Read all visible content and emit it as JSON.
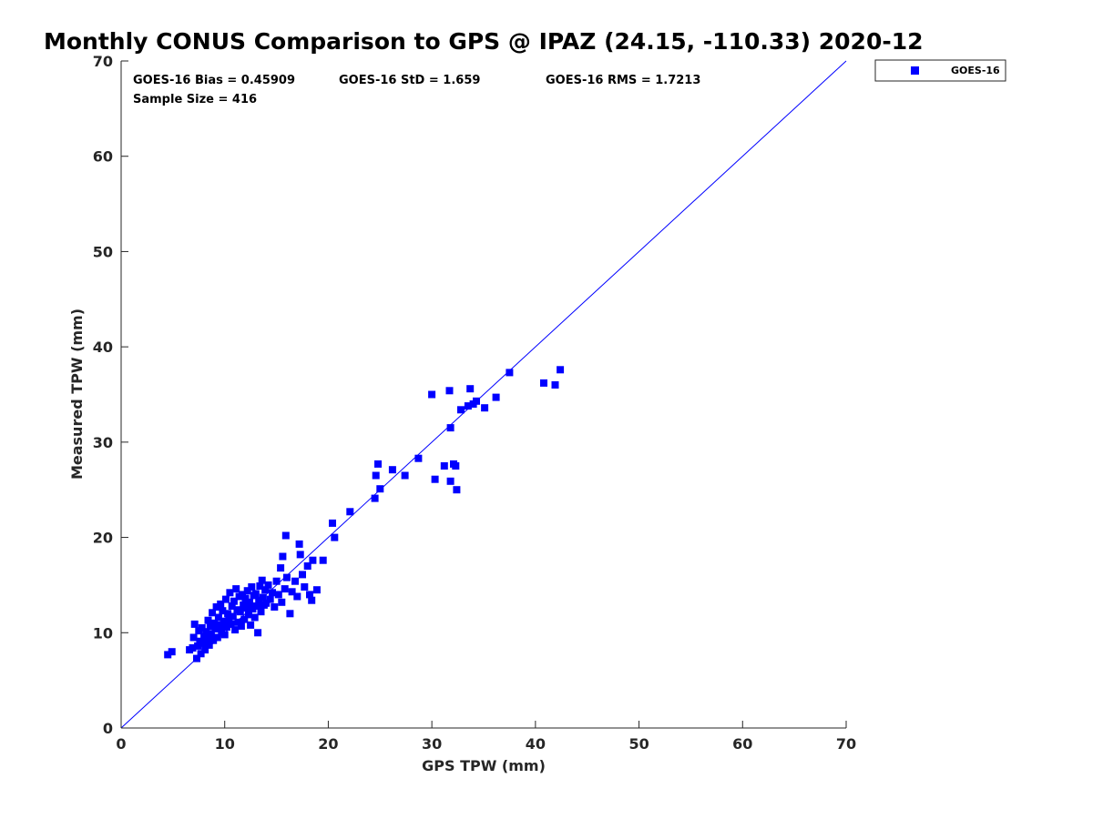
{
  "chart_data": {
    "type": "scatter",
    "title": "Monthly CONUS Comparison to GPS @ IPAZ (24.15, -110.33) 2020-12",
    "xlabel": "GPS TPW (mm)",
    "ylabel": "Measured TPW (mm)",
    "xlim": [
      0,
      70
    ],
    "ylim": [
      0,
      70
    ],
    "xticks": [
      "0",
      "10",
      "20",
      "30",
      "40",
      "50",
      "60",
      "70"
    ],
    "yticks": [
      "0",
      "10",
      "20",
      "30",
      "40",
      "50",
      "60",
      "70"
    ],
    "grid": false,
    "legend_position": "outside-top-right",
    "marker_color": "#0000ff",
    "reference_line": {
      "x": [
        0,
        70
      ],
      "y": [
        0,
        70
      ]
    },
    "stats": {
      "bias": "GOES-16 Bias = 0.45909",
      "std": "GOES-16 StD = 1.659",
      "rms": "GOES-16 RMS = 1.7213",
      "sample_size": "Sample Size = 416"
    },
    "series": [
      {
        "name": "GOES-16",
        "points": [
          [
            4.5,
            7.7
          ],
          [
            4.9,
            8.0
          ],
          [
            6.6,
            8.2
          ],
          [
            6.9,
            8.4
          ],
          [
            7.0,
            9.5
          ],
          [
            7.1,
            10.9
          ],
          [
            7.3,
            7.3
          ],
          [
            7.4,
            8.6
          ],
          [
            7.5,
            10.2
          ],
          [
            7.6,
            9.1
          ],
          [
            7.7,
            7.8
          ],
          [
            7.8,
            10.5
          ],
          [
            7.9,
            8.9
          ],
          [
            8.0,
            9.6
          ],
          [
            8.1,
            8.2
          ],
          [
            8.2,
            10.1
          ],
          [
            8.3,
            9.3
          ],
          [
            8.4,
            11.3
          ],
          [
            8.5,
            8.7
          ],
          [
            8.6,
            10.7
          ],
          [
            8.7,
            9.9
          ],
          [
            8.8,
            12.1
          ],
          [
            8.9,
            9.2
          ],
          [
            9.0,
            11.0
          ],
          [
            9.1,
            10.4
          ],
          [
            9.2,
            12.7
          ],
          [
            9.3,
            9.5
          ],
          [
            9.4,
            11.6
          ],
          [
            9.5,
            10.8
          ],
          [
            9.6,
            13.0
          ],
          [
            9.7,
            10.1
          ],
          [
            9.8,
            12.3
          ],
          [
            9.9,
            11.2
          ],
          [
            10.0,
            9.8
          ],
          [
            10.1,
            13.5
          ],
          [
            10.2,
            10.6
          ],
          [
            10.3,
            12.0
          ],
          [
            10.4,
            11.5
          ],
          [
            10.5,
            14.2
          ],
          [
            10.6,
            10.9
          ],
          [
            10.7,
            12.8
          ],
          [
            10.8,
            11.7
          ],
          [
            10.9,
            13.3
          ],
          [
            11.0,
            10.3
          ],
          [
            11.1,
            14.6
          ],
          [
            11.2,
            12.4
          ],
          [
            11.3,
            11.1
          ],
          [
            11.4,
            13.8
          ],
          [
            11.5,
            12.2
          ],
          [
            11.6,
            10.7
          ],
          [
            11.7,
            14.0
          ],
          [
            11.8,
            12.9
          ],
          [
            11.9,
            11.4
          ],
          [
            12.0,
            13.6
          ],
          [
            12.1,
            12.6
          ],
          [
            12.2,
            14.4
          ],
          [
            12.3,
            11.9
          ],
          [
            12.4,
            13.2
          ],
          [
            12.5,
            10.8
          ],
          [
            12.6,
            14.8
          ],
          [
            12.7,
            12.5
          ],
          [
            12.8,
            13.9
          ],
          [
            12.9,
            11.6
          ],
          [
            13.0,
            14.1
          ],
          [
            13.1,
            12.8
          ],
          [
            13.2,
            10.0
          ],
          [
            13.3,
            13.4
          ],
          [
            13.4,
            14.9
          ],
          [
            13.5,
            12.2
          ],
          [
            13.6,
            15.5
          ],
          [
            13.7,
            13.7
          ],
          [
            13.8,
            12.9
          ],
          [
            13.9,
            14.5
          ],
          [
            14.0,
            13.1
          ],
          [
            14.2,
            15.0
          ],
          [
            14.4,
            13.5
          ],
          [
            14.6,
            14.2
          ],
          [
            14.8,
            12.7
          ],
          [
            15.0,
            15.4
          ],
          [
            15.2,
            14.0
          ],
          [
            15.4,
            16.8
          ],
          [
            15.5,
            13.2
          ],
          [
            15.6,
            18.0
          ],
          [
            15.8,
            14.6
          ],
          [
            15.9,
            20.2
          ],
          [
            16.0,
            15.8
          ],
          [
            16.3,
            12.0
          ],
          [
            16.5,
            14.3
          ],
          [
            16.8,
            15.4
          ],
          [
            17.0,
            13.8
          ],
          [
            17.2,
            19.3
          ],
          [
            17.3,
            18.2
          ],
          [
            17.5,
            16.1
          ],
          [
            17.7,
            14.8
          ],
          [
            18.0,
            17.0
          ],
          [
            18.2,
            14.0
          ],
          [
            18.4,
            13.4
          ],
          [
            18.5,
            17.6
          ],
          [
            18.9,
            14.5
          ],
          [
            19.5,
            17.6
          ],
          [
            20.4,
            21.5
          ],
          [
            20.6,
            20.0
          ],
          [
            22.1,
            22.7
          ],
          [
            24.5,
            24.1
          ],
          [
            24.6,
            26.5
          ],
          [
            24.8,
            27.7
          ],
          [
            25.0,
            25.1
          ],
          [
            26.2,
            27.1
          ],
          [
            27.4,
            26.5
          ],
          [
            28.7,
            28.3
          ],
          [
            30.0,
            35.0
          ],
          [
            30.3,
            26.1
          ],
          [
            31.2,
            27.5
          ],
          [
            31.7,
            35.4
          ],
          [
            31.8,
            25.9
          ],
          [
            31.8,
            31.5
          ],
          [
            32.1,
            27.7
          ],
          [
            32.3,
            27.5
          ],
          [
            32.4,
            25.0
          ],
          [
            32.8,
            33.4
          ],
          [
            33.5,
            33.8
          ],
          [
            33.7,
            35.6
          ],
          [
            34.0,
            34.0
          ],
          [
            34.3,
            34.3
          ],
          [
            35.1,
            33.6
          ],
          [
            36.2,
            34.7
          ],
          [
            37.5,
            37.3
          ],
          [
            40.8,
            36.2
          ],
          [
            41.9,
            36.0
          ],
          [
            42.4,
            37.6
          ]
        ]
      }
    ]
  }
}
